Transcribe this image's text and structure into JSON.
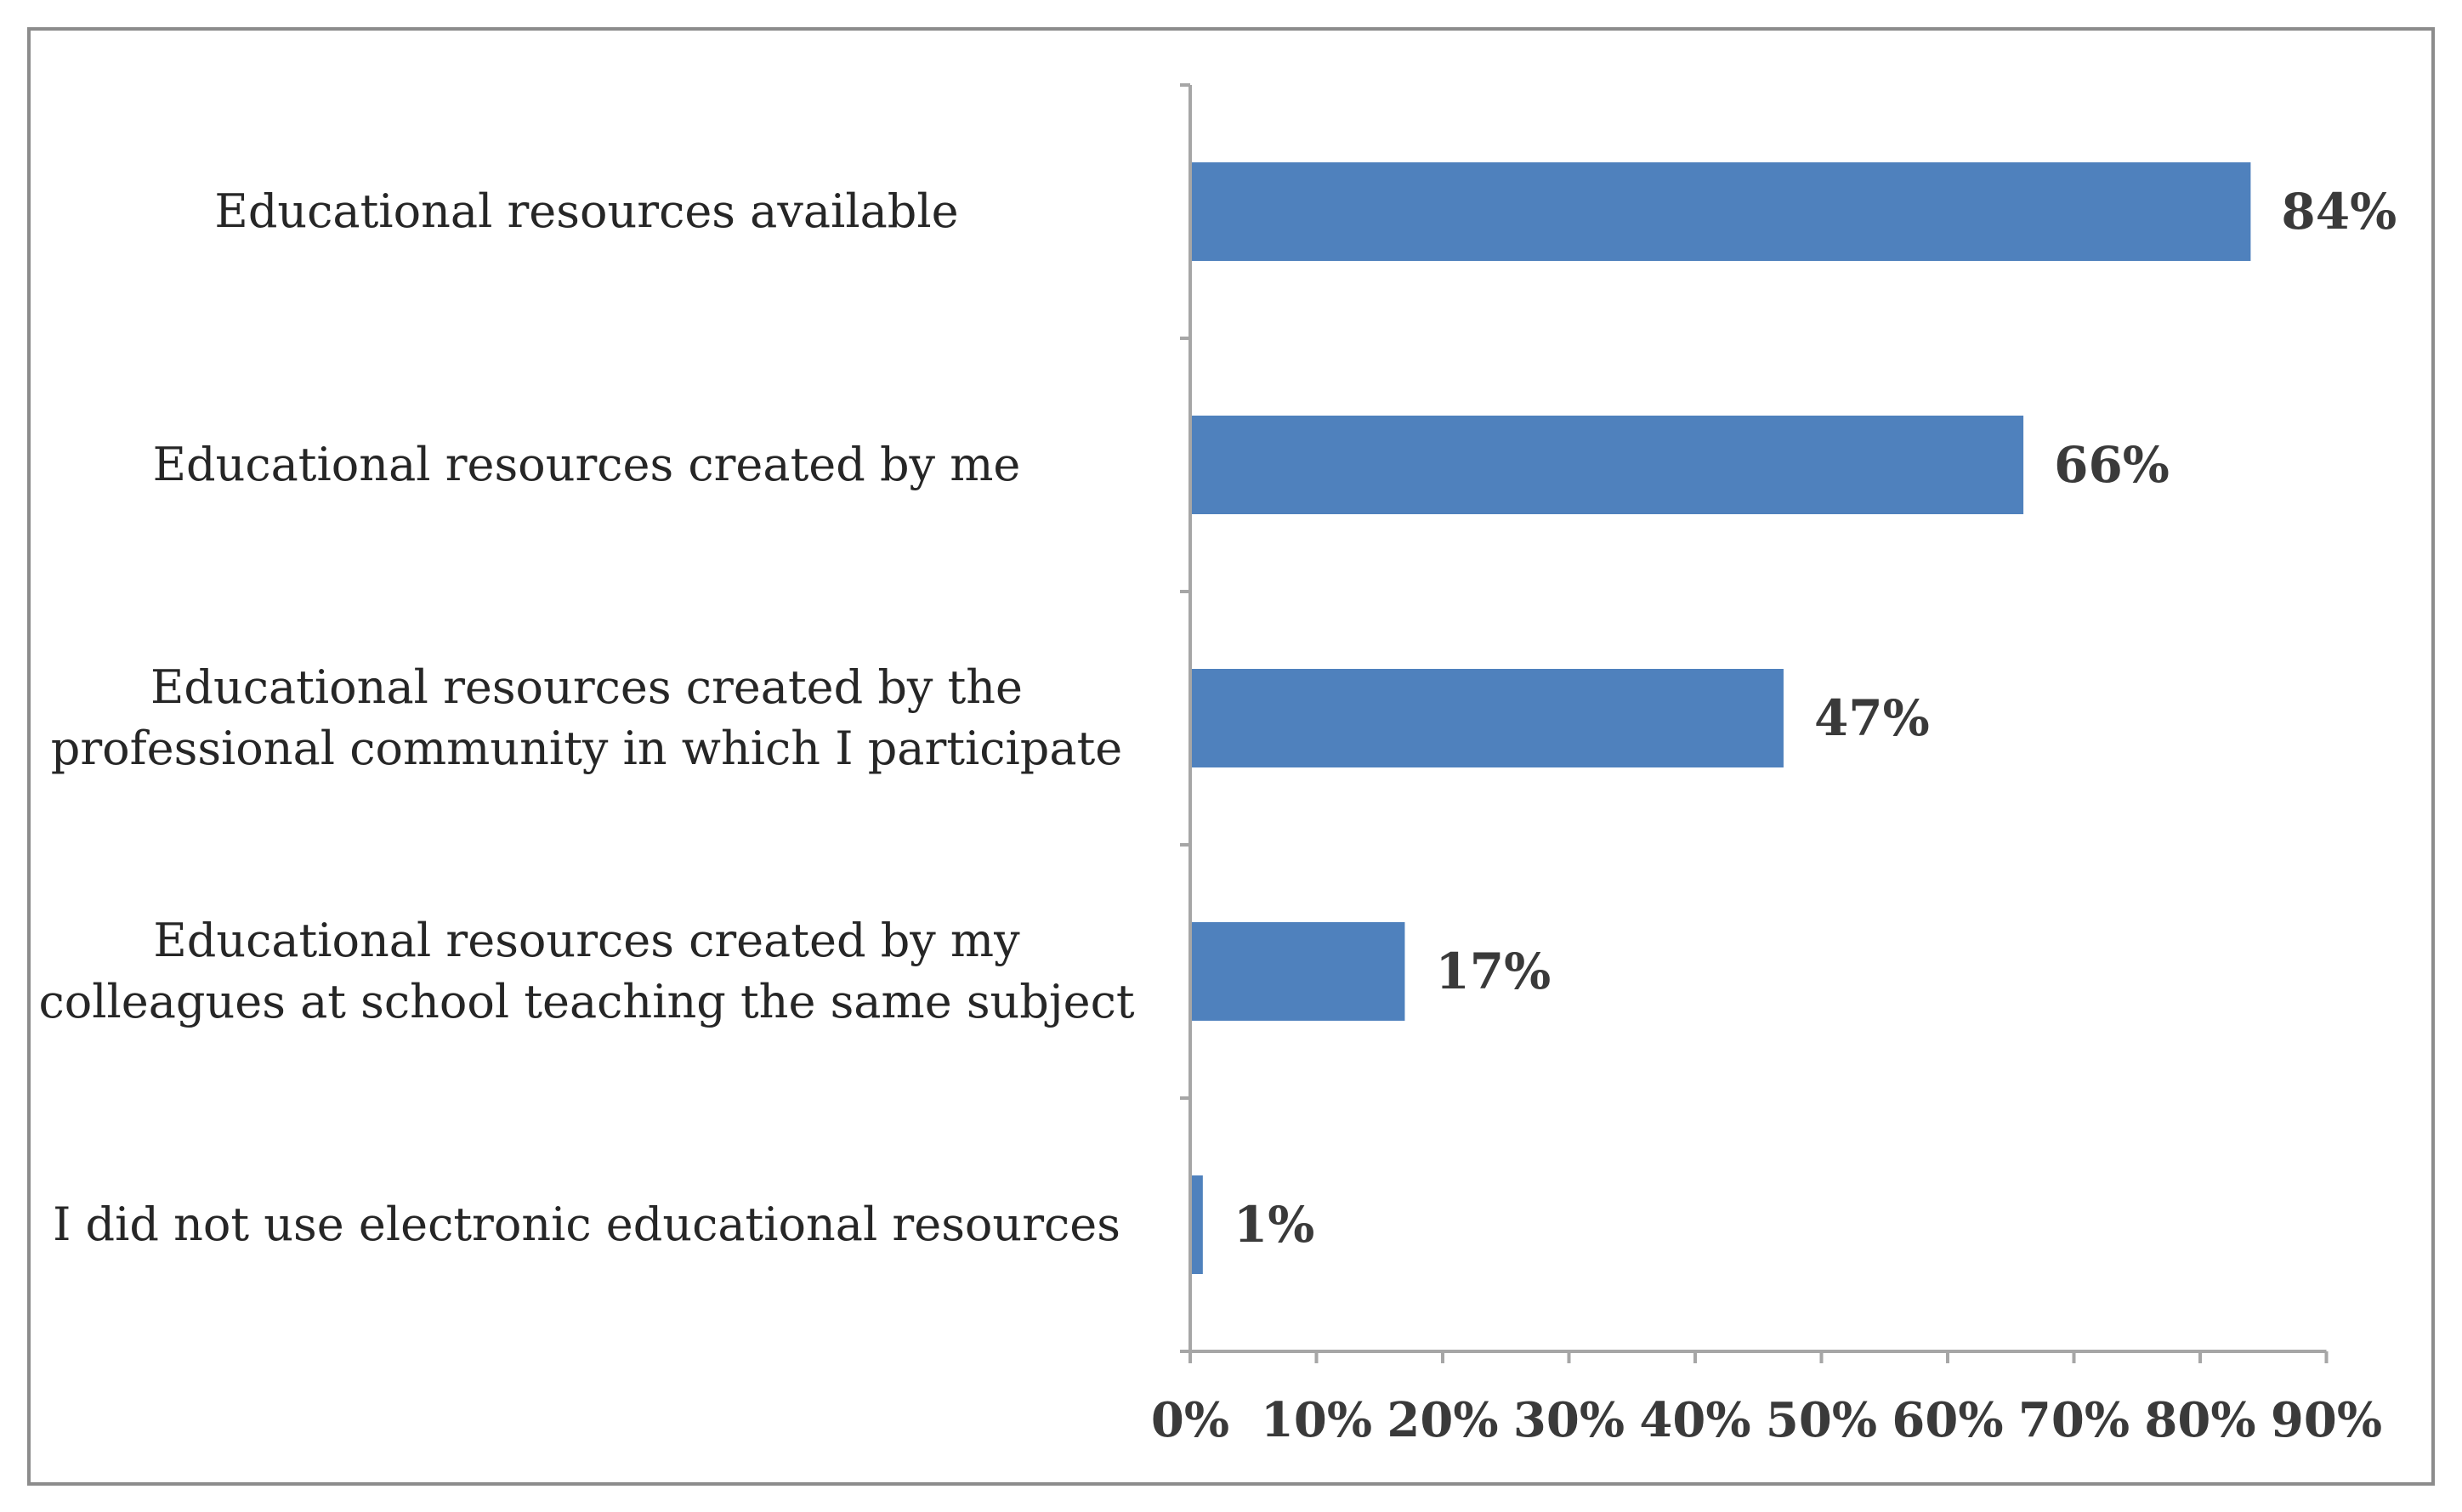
{
  "chart_data": {
    "type": "bar",
    "orientation": "horizontal",
    "categories": [
      [
        "Educational resources available"
      ],
      [
        "Educational resources created by me"
      ],
      [
        "Educational resources created by the",
        "professional community in which I participate"
      ],
      [
        "Educational resources created by my",
        "colleagues at school teaching the same subject"
      ],
      [
        "I did not use electronic educational resources"
      ]
    ],
    "values": [
      84,
      66,
      47,
      17,
      1
    ],
    "data_labels": [
      "84%",
      "66%",
      "47%",
      "17%",
      "1%"
    ],
    "xlim": [
      0,
      90
    ],
    "xticks": [
      "0%",
      "10%",
      "20%",
      "30%",
      "40%",
      "50%",
      "60%",
      "70%",
      "80%",
      "90%"
    ],
    "title": "",
    "xlabel": "",
    "ylabel": "",
    "grid": false,
    "legend": "none",
    "bar_color": "#4f81bd",
    "axis_color": "#a6a6a6",
    "frame_color": "#8c8c8c"
  }
}
